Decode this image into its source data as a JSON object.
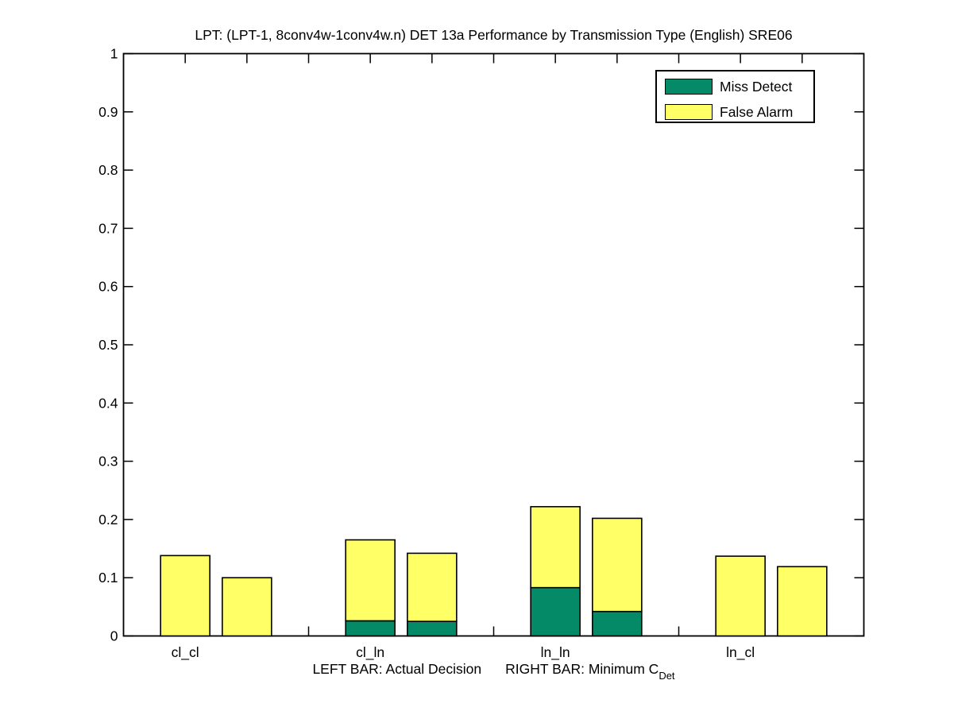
{
  "figure": {
    "title": "LPT: (LPT-1, 8conv4w-1conv4w.n) DET 13a Performance by Transmission Type (English) SRE06",
    "background": "#ffffff",
    "axis_color": "#000000"
  },
  "legend": {
    "position": "upper-right",
    "items": [
      {
        "label": "Miss Detect",
        "color": "#058a68"
      },
      {
        "label": "False Alarm",
        "color": "#ffff66"
      }
    ]
  },
  "xlabel": {
    "left": "LEFT BAR: Actual Decision",
    "right": "RIGHT BAR: Minimum C",
    "subscript": "Det"
  },
  "chart_data": {
    "type": "bar",
    "stacked": true,
    "grid": false,
    "title": "LPT: (LPT-1, 8conv4w-1conv4w.n) DET 13a Performance by Transmission Type (English) SRE06",
    "xlabel": "LEFT BAR: Actual Decision   RIGHT BAR: Minimum C_Det",
    "ylabel": "",
    "ylim": [
      0,
      1
    ],
    "yticks": [
      0,
      0.1,
      0.2,
      0.3,
      0.4,
      0.5,
      0.6,
      0.7,
      0.8,
      0.9,
      1
    ],
    "ytick_labels": [
      "0",
      "0.1",
      "0.2",
      "0.3",
      "0.4",
      "0.5",
      "0.6",
      "0.7",
      "0.8",
      "0.9",
      "1"
    ],
    "categories": [
      "cl_cl",
      "cl_ln",
      "ln_ln",
      "ln_cl"
    ],
    "bar_semantics": {
      "left_bar": "Actual Decision",
      "right_bar": "Minimum C_Det"
    },
    "series": [
      {
        "name": "Miss Detect",
        "color": "#058a68",
        "left_values": [
          0.0,
          0.026,
          0.083,
          0.0
        ],
        "right_values": [
          0.0,
          0.025,
          0.042,
          0.0
        ]
      },
      {
        "name": "False Alarm",
        "color": "#ffff66",
        "left_values": [
          0.138,
          0.139,
          0.139,
          0.137
        ],
        "right_values": [
          0.1,
          0.117,
          0.16,
          0.119
        ]
      }
    ],
    "stack_totals": {
      "left": [
        0.138,
        0.165,
        0.222,
        0.137
      ],
      "right": [
        0.1,
        0.142,
        0.202,
        0.119
      ]
    }
  }
}
